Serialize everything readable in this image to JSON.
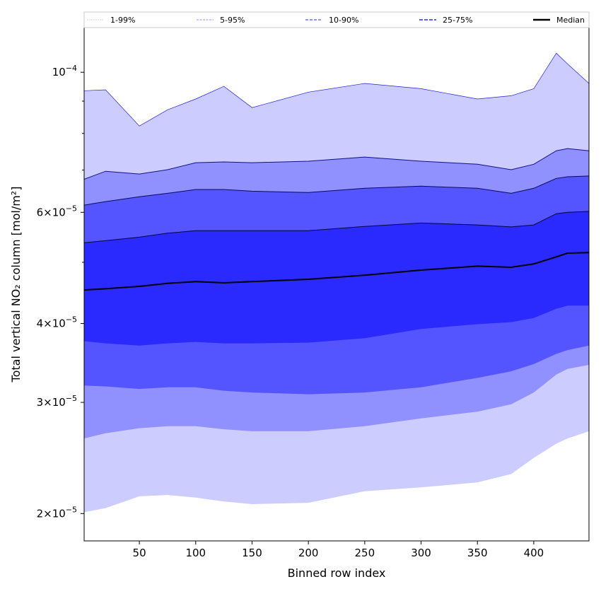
{
  "chart_data": {
    "type": "area",
    "title": "",
    "xlabel": "Binned row index",
    "ylabel": "Total vertical NO₂ column [mol/m²]",
    "yscale": "log",
    "xlim": [
      1,
      449
    ],
    "ylim": [
      1.81e-05,
      0.0001177
    ],
    "x_ticks": [
      50,
      100,
      150,
      200,
      250,
      300,
      350,
      400
    ],
    "x_tick_labels": [
      "50",
      "100",
      "150",
      "200",
      "250",
      "300",
      "350",
      "400"
    ],
    "y_ticks": [
      {
        "value": 2e-05,
        "mant": "2",
        "exp": "−5"
      },
      {
        "value": 3e-05,
        "mant": "3",
        "exp": "−5"
      },
      {
        "value": 4e-05,
        "mant": "4",
        "exp": "−5"
      },
      {
        "value": 6e-05,
        "mant": "6",
        "exp": "−5"
      },
      {
        "value": 0.0001,
        "mant": "",
        "exp": "−4"
      }
    ],
    "y_minor_ticks": [
      5e-05,
      7e-05,
      8e-05,
      9e-05
    ],
    "legend": {
      "placement": "top",
      "entries": [
        "1-99%",
        "5-95%",
        "10-90%",
        "25-75%",
        "Median"
      ]
    },
    "x": [
      1,
      20,
      50,
      75,
      100,
      125,
      150,
      200,
      250,
      300,
      350,
      380,
      400,
      420,
      430,
      449
    ],
    "bands": [
      {
        "name": "1-99%",
        "color": "#ccccff",
        "line": "#2020e0",
        "lower": [
          2.01e-05,
          2.04e-05,
          2.13e-05,
          2.14e-05,
          2.12e-05,
          2.09e-05,
          2.07e-05,
          2.08e-05,
          2.17e-05,
          2.2e-05,
          2.24e-05,
          2.31e-05,
          2.45e-05,
          2.58e-05,
          2.63e-05,
          2.7e-05
        ],
        "upper": [
          9.35e-05,
          9.38e-05,
          8.22e-05,
          8.72e-05,
          9.07e-05,
          9.5e-05,
          8.79e-05,
          9.3e-05,
          9.6e-05,
          9.42e-05,
          9.07e-05,
          9.18e-05,
          9.42e-05,
          0.0001072,
          0.0001031,
          9.6e-05
        ]
      },
      {
        "name": "5-95%",
        "color": "#9090ff",
        "line": "#101090",
        "lower": [
          2.63e-05,
          2.68e-05,
          2.73e-05,
          2.75e-05,
          2.75e-05,
          2.72e-05,
          2.7e-05,
          2.7e-05,
          2.75e-05,
          2.83e-05,
          2.9e-05,
          2.98e-05,
          3.11e-05,
          3.32e-05,
          3.39e-05,
          3.44e-05
        ],
        "upper": [
          6.77e-05,
          6.97e-05,
          6.9e-05,
          7.01e-05,
          7.19e-05,
          7.21e-05,
          7.19e-05,
          7.23e-05,
          7.34e-05,
          7.23e-05,
          7.15e-05,
          7.01e-05,
          7.15e-05,
          7.51e-05,
          7.57e-05,
          7.51e-05
        ]
      },
      {
        "name": "10-90%",
        "color": "#5555ff",
        "line": "#0a0a60",
        "lower": [
          3.19e-05,
          3.18e-05,
          3.15e-05,
          3.17e-05,
          3.17e-05,
          3.13e-05,
          3.11e-05,
          3.09e-05,
          3.11e-05,
          3.17e-05,
          3.28e-05,
          3.36e-05,
          3.45e-05,
          3.58e-05,
          3.63e-05,
          3.69e-05
        ],
        "upper": [
          6.16e-05,
          6.24e-05,
          6.35e-05,
          6.43e-05,
          6.52e-05,
          6.52e-05,
          6.48e-05,
          6.45e-05,
          6.55e-05,
          6.6e-05,
          6.55e-05,
          6.43e-05,
          6.55e-05,
          6.79e-05,
          6.83e-05,
          6.85e-05
        ]
      },
      {
        "name": "25-75%",
        "color": "#2a2aff",
        "line": "#050540",
        "lower": [
          3.75e-05,
          3.72e-05,
          3.69e-05,
          3.72e-05,
          3.74e-05,
          3.72e-05,
          3.72e-05,
          3.73e-05,
          3.79e-05,
          3.92e-05,
          3.99e-05,
          4.02e-05,
          4.08e-05,
          4.22e-05,
          4.27e-05,
          4.27e-05
        ],
        "upper": [
          5.37e-05,
          5.41e-05,
          5.48e-05,
          5.56e-05,
          5.61e-05,
          5.61e-05,
          5.61e-05,
          5.61e-05,
          5.7e-05,
          5.77e-05,
          5.73e-05,
          5.69e-05,
          5.73e-05,
          5.97e-05,
          6e-05,
          6.02e-05
        ]
      }
    ],
    "median": {
      "name": "Median",
      "color": "#000000",
      "values": [
        4.52e-05,
        4.54e-05,
        4.58e-05,
        4.63e-05,
        4.66e-05,
        4.64e-05,
        4.66e-05,
        4.7e-05,
        4.77e-05,
        4.86e-05,
        4.93e-05,
        4.91e-05,
        4.97e-05,
        5.1e-05,
        5.17e-05,
        5.18e-05
      ]
    }
  }
}
